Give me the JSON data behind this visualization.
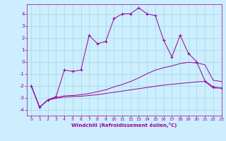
{
  "xlabel": "Windchill (Refroidissement éolien,°C)",
  "xlim": [
    -0.5,
    23
  ],
  "ylim": [
    -4.5,
    4.8
  ],
  "yticks": [
    -4,
    -3,
    -2,
    -1,
    0,
    1,
    2,
    3,
    4
  ],
  "xticks": [
    0,
    1,
    2,
    3,
    4,
    5,
    6,
    7,
    8,
    9,
    10,
    11,
    12,
    13,
    14,
    15,
    16,
    17,
    18,
    19,
    20,
    21,
    22,
    23
  ],
  "bg_color": "#cceeff",
  "line_color": "#990099",
  "grid_color": "#aadddd",
  "line1_x": [
    0,
    1,
    2,
    3,
    4,
    5,
    6,
    7,
    8,
    9,
    10,
    11,
    12,
    13,
    14,
    15,
    16,
    17,
    18,
    19,
    20,
    21,
    22,
    23
  ],
  "line1_y": [
    -2.0,
    -3.8,
    -3.2,
    -2.9,
    -0.7,
    -0.8,
    -0.7,
    2.2,
    1.5,
    1.7,
    3.6,
    4.0,
    4.0,
    4.5,
    4.0,
    3.85,
    1.8,
    0.4,
    2.2,
    0.7,
    0.0,
    -1.6,
    -2.1,
    -2.2
  ],
  "line2_x": [
    0,
    1,
    2,
    3,
    4,
    5,
    6,
    7,
    8,
    9,
    10,
    11,
    12,
    13,
    14,
    15,
    16,
    17,
    18,
    19,
    20,
    21,
    22,
    23
  ],
  "line2_y": [
    -2.0,
    -3.8,
    -3.2,
    -3.0,
    -2.85,
    -2.82,
    -2.75,
    -2.65,
    -2.5,
    -2.35,
    -2.1,
    -1.9,
    -1.65,
    -1.35,
    -1.0,
    -0.7,
    -0.5,
    -0.35,
    -0.15,
    -0.05,
    -0.1,
    -0.25,
    -1.55,
    -1.65
  ],
  "line3_x": [
    0,
    1,
    2,
    3,
    4,
    5,
    6,
    7,
    8,
    9,
    10,
    11,
    12,
    13,
    14,
    15,
    16,
    17,
    18,
    19,
    20,
    21,
    22,
    23
  ],
  "line3_y": [
    -2.0,
    -3.8,
    -3.2,
    -3.05,
    -2.95,
    -2.9,
    -2.88,
    -2.82,
    -2.75,
    -2.65,
    -2.55,
    -2.45,
    -2.35,
    -2.25,
    -2.15,
    -2.05,
    -1.95,
    -1.88,
    -1.82,
    -1.75,
    -1.68,
    -1.65,
    -2.2,
    -2.2
  ]
}
